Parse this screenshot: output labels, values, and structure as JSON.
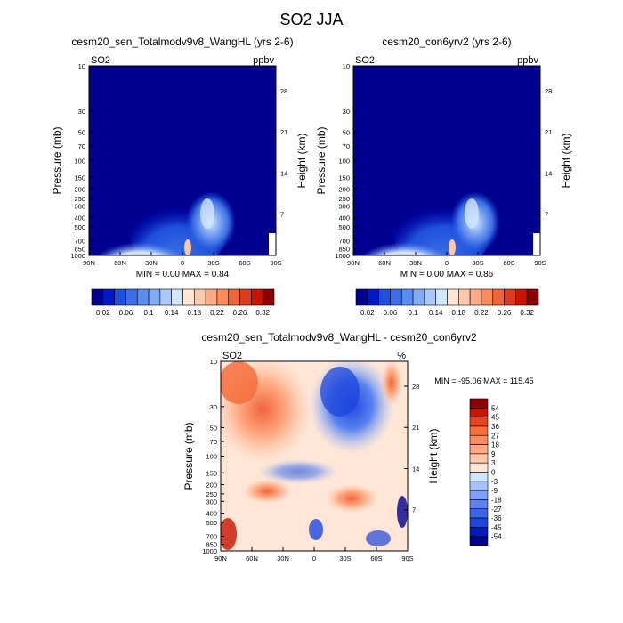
{
  "main_title": "SO2 JJA",
  "colors": {
    "abs_scale": [
      "#000090",
      "#0019c8",
      "#1e50dc",
      "#3c6ee6",
      "#5a8cf0",
      "#82aaf5",
      "#aac8fa",
      "#d2e6ff",
      "#ffe6d2",
      "#ffc8aa",
      "#ffaa82",
      "#ff8c5a",
      "#f0643c",
      "#dc3c1e",
      "#c81400",
      "#8c0000"
    ],
    "diff_scale": [
      "#00008c",
      "#0019c8",
      "#1e46dc",
      "#3c64e6",
      "#5a82f0",
      "#7ea0f5",
      "#a5c3fa",
      "#d2e4ff",
      "#ffe6d7",
      "#ffc8aa",
      "#ffaa82",
      "#ff8c5f",
      "#f56e3c",
      "#e6461e",
      "#c81400",
      "#8c0000"
    ]
  },
  "chart_data": [
    {
      "type": "heatmap",
      "title": "cesm20_sen_Totalmodv9v8_WangHL (yrs 2-6)",
      "left_label": "SO2",
      "right_label": "ppbv",
      "ylabel": "Pressure (mb)",
      "ylabel_right": "Height (km)",
      "x_ticks": [
        "90N",
        "60N",
        "30N",
        "0",
        "30S",
        "60S",
        "90S"
      ],
      "y_ticks": [
        10,
        30,
        50,
        70,
        100,
        150,
        200,
        250,
        300,
        400,
        500,
        700,
        850,
        1000
      ],
      "y_ticks_right": [
        28,
        21,
        14,
        7
      ],
      "ylim": [
        10,
        1000
      ],
      "log_y": true,
      "stats": "MIN =   0.00  MAX =   0.84",
      "colorbar_labels": [
        "0.02",
        "0.06",
        "0.1",
        "0.14",
        "0.18",
        "0.22",
        "0.26",
        "0.32"
      ],
      "colorbar_levels": [
        0.02,
        0.04,
        0.06,
        0.08,
        0.1,
        0.12,
        0.14,
        0.16,
        0.18,
        0.2,
        0.22,
        0.24,
        0.26,
        0.28,
        0.32
      ]
    },
    {
      "type": "heatmap",
      "title": "cesm20_con6yrv2 (yrs 2-6)",
      "left_label": "SO2",
      "right_label": "ppbv",
      "ylabel": "Pressure (mb)",
      "ylabel_right": "Height (km)",
      "x_ticks": [
        "90N",
        "60N",
        "30N",
        "0",
        "30S",
        "60S",
        "90S"
      ],
      "y_ticks": [
        10,
        30,
        50,
        70,
        100,
        150,
        200,
        250,
        300,
        400,
        500,
        700,
        850,
        1000
      ],
      "y_ticks_right": [
        28,
        21,
        14,
        7
      ],
      "ylim": [
        10,
        1000
      ],
      "log_y": true,
      "stats": "MIN =   0.00  MAX =   0.86",
      "colorbar_labels": [
        "0.02",
        "0.06",
        "0.1",
        "0.14",
        "0.18",
        "0.22",
        "0.26",
        "0.32"
      ],
      "colorbar_levels": [
        0.02,
        0.04,
        0.06,
        0.08,
        0.1,
        0.12,
        0.14,
        0.16,
        0.18,
        0.2,
        0.22,
        0.24,
        0.26,
        0.28,
        0.32
      ]
    },
    {
      "type": "heatmap",
      "title": "cesm20_sen_Totalmodv9v8_WangHL - cesm20_con6yrv2",
      "left_label": "SO2",
      "right_label": "%",
      "ylabel": "Pressure (mb)",
      "ylabel_right": "Height (km)",
      "x_ticks": [
        "90N",
        "60N",
        "30N",
        "0",
        "30S",
        "60S",
        "90S"
      ],
      "y_ticks": [
        10,
        30,
        50,
        70,
        100,
        150,
        200,
        250,
        300,
        400,
        500,
        700,
        850,
        1000
      ],
      "y_ticks_right": [
        28,
        21,
        14,
        7
      ],
      "ylim": [
        10,
        1000
      ],
      "log_y": true,
      "stats": "MIN = -95.06  MAX = 115.45",
      "colorbar_labels": [
        "54",
        "45",
        "36",
        "27",
        "18",
        "9",
        "3",
        "0",
        "-3",
        "-9",
        "-18",
        "-27",
        "-36",
        "-45",
        "-54"
      ],
      "colorbar_levels": [
        54,
        45,
        36,
        27,
        18,
        9,
        3,
        0,
        -3,
        -9,
        -18,
        -27,
        -36,
        -45,
        -54
      ]
    }
  ]
}
